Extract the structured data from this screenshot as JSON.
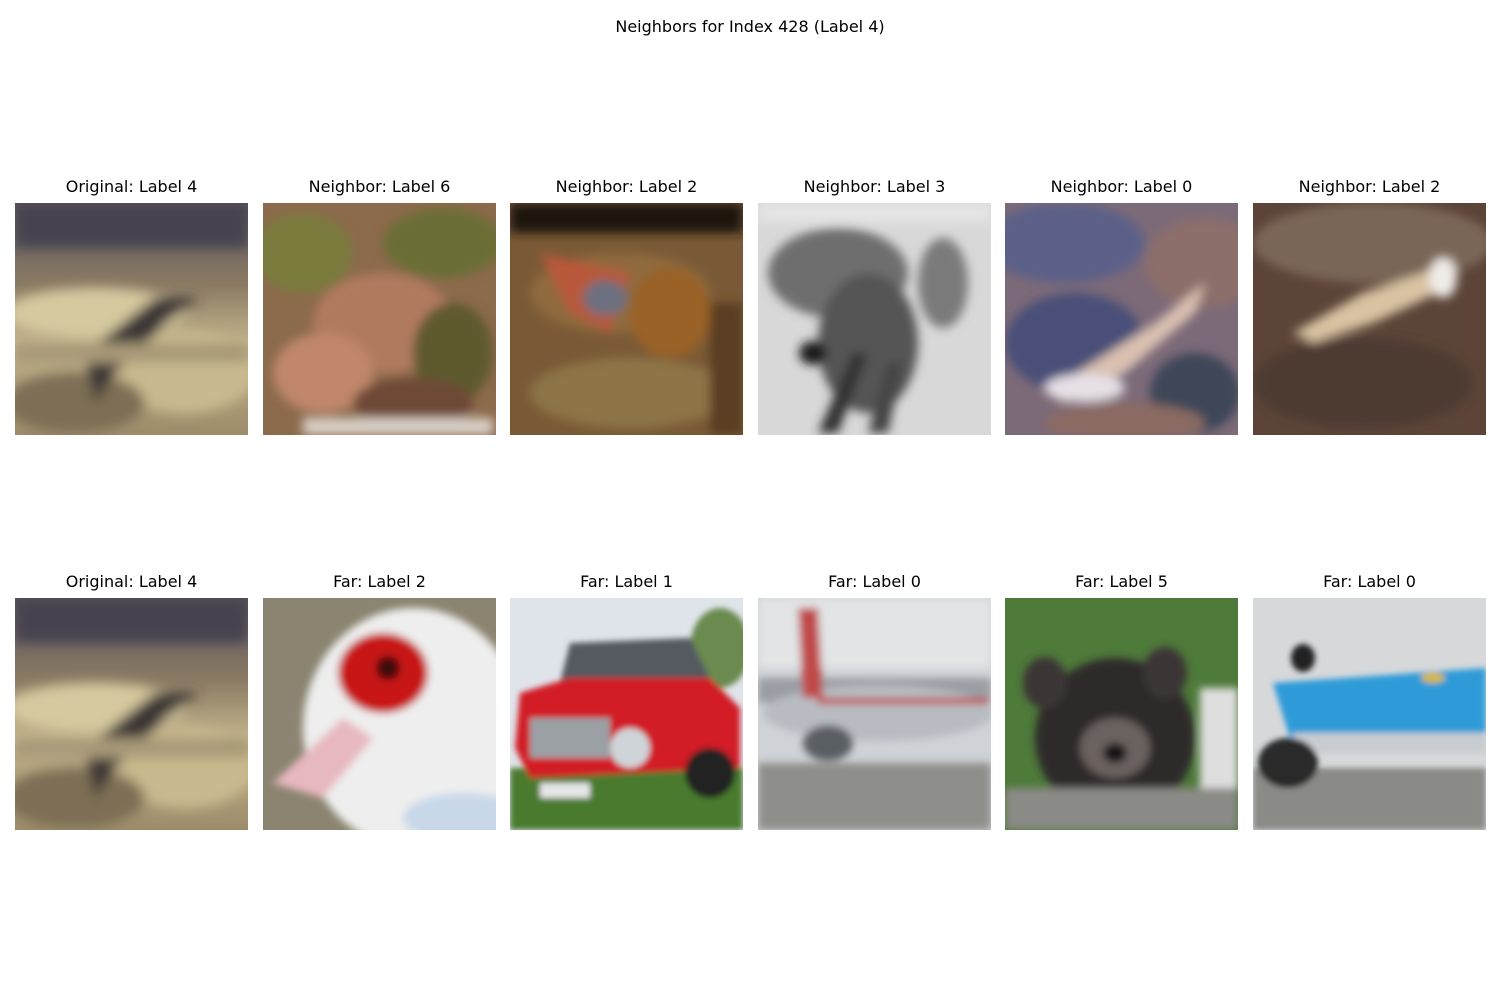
{
  "figure": {
    "title": "Neighbors for Index 428 (Label 4)"
  },
  "rows": [
    {
      "panels": [
        {
          "title": "Original: Label 4",
          "scene": "bird-on-sand"
        },
        {
          "title": "Neighbor: Label 6",
          "scene": "frog-in-foliage"
        },
        {
          "title": "Neighbor: Label 2",
          "scene": "bird-against-wall"
        },
        {
          "title": "Neighbor: Label 3",
          "scene": "grayscale-cat"
        },
        {
          "title": "Neighbor: Label 0",
          "scene": "aerial-plane-over-land"
        },
        {
          "title": "Neighbor: Label 2",
          "scene": "bird-on-ground"
        }
      ]
    },
    {
      "panels": [
        {
          "title": "Original: Label 4",
          "scene": "bird-on-sand"
        },
        {
          "title": "Far: Label 2",
          "scene": "white-duck-red-face"
        },
        {
          "title": "Far: Label 1",
          "scene": "red-car"
        },
        {
          "title": "Far: Label 0",
          "scene": "airliner-on-runway"
        },
        {
          "title": "Far: Label 5",
          "scene": "black-dog-on-grass"
        },
        {
          "title": "Far: Label 0",
          "scene": "blue-airliner"
        }
      ]
    }
  ]
}
